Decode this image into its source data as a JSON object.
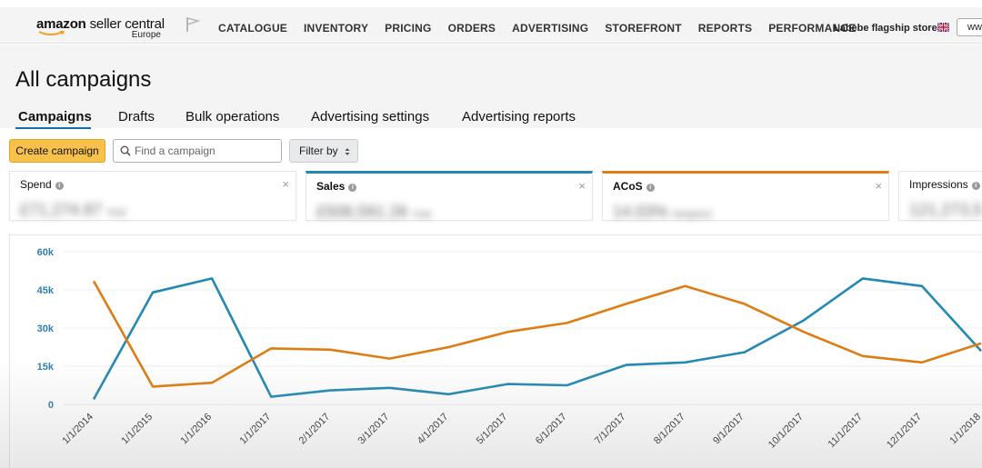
{
  "header": {
    "logo_text_bold": "amazon",
    "logo_text_rest": " seller central",
    "logo_region": "Europe",
    "nav": [
      "CATALOGUE",
      "INVENTORY",
      "PRICING",
      "ORDERS",
      "ADVERTISING",
      "STOREFRONT",
      "REPORTS",
      "PERFORMANCE"
    ],
    "store_name": "Labebe flagship store",
    "marketplace_value": "ww"
  },
  "page": {
    "title": "All campaigns",
    "tabs": [
      {
        "label": "Campaigns",
        "active": true
      },
      {
        "label": "Drafts",
        "active": false
      },
      {
        "label": "Bulk operations",
        "active": false
      },
      {
        "label": "Advertising settings",
        "active": false
      },
      {
        "label": "Advertising reports",
        "active": false
      }
    ]
  },
  "toolbar": {
    "create_label": "Create campaign",
    "search_placeholder": "Find a campaign",
    "filter_label": "Filter by"
  },
  "metrics": [
    {
      "label": "Spend",
      "value": "£71,274.87",
      "note": "Total",
      "accent": ""
    },
    {
      "label": "Sales",
      "value": "£508,591.26",
      "note": "Total",
      "accent": "#2389b4"
    },
    {
      "label": "ACoS",
      "value": "14.03%",
      "note": "Weighted",
      "accent": "#dd7d13"
    },
    {
      "label": "Impressions",
      "value": "121,273,5",
      "note": "",
      "accent": ""
    }
  ],
  "chart_data": {
    "type": "line",
    "categories": [
      "1/1/2014",
      "1/1/2015",
      "1/1/2016",
      "1/1/2017",
      "2/1/2017",
      "3/1/2017",
      "4/1/2017",
      "5/1/2017",
      "6/1/2017",
      "7/1/2017",
      "8/1/2017",
      "9/1/2017",
      "10/1/2017",
      "11/1/2017",
      "12/1/2017",
      "1/1/2018"
    ],
    "ylim": [
      0,
      60000
    ],
    "y_ticks": [
      "0",
      "15k",
      "30k",
      "45k",
      "60k"
    ],
    "y_tick_values": [
      0,
      15000,
      30000,
      45000,
      60000
    ],
    "grid": true,
    "series": [
      {
        "name": "Sales",
        "color": "#2389b4",
        "values": [
          2000,
          44000,
          49500,
          3000,
          5500,
          6500,
          4000,
          8000,
          7500,
          15500,
          16500,
          20500,
          33000,
          49500,
          46500,
          21000
        ]
      },
      {
        "name": "ACoS",
        "color": "#dd7d13",
        "values": [
          48500,
          7000,
          8500,
          22000,
          21500,
          18000,
          22500,
          28500,
          32000,
          39500,
          46500,
          39500,
          28500,
          19000,
          16500,
          24000
        ]
      }
    ]
  }
}
